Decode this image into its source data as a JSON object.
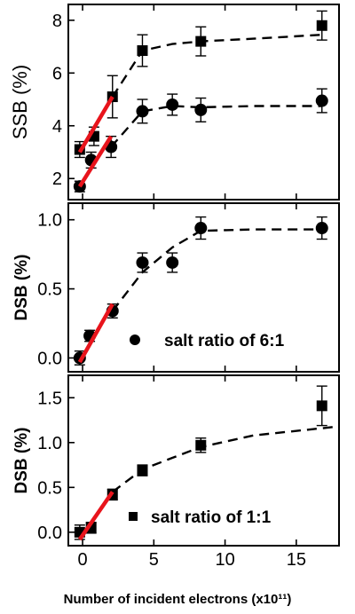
{
  "chart_data": [
    {
      "type": "scatter",
      "ylabel": "SSB (%)",
      "xlabel": "",
      "xlim": [
        -1,
        18
      ],
      "ylim": [
        1.2,
        8.6
      ],
      "yticks": [
        2,
        4,
        6,
        8
      ],
      "series": [
        {
          "marker": "square",
          "x": [
            -0.2,
            0.8,
            2.1,
            4.2,
            8.3,
            16.8
          ],
          "y": [
            3.1,
            3.6,
            5.1,
            6.85,
            7.2,
            7.8
          ],
          "err": [
            0.3,
            0.35,
            0.8,
            0.6,
            0.55,
            0.55
          ],
          "fit_dashed": [
            [
              2.1,
              5.1
            ],
            [
              4.2,
              6.85
            ],
            [
              6.3,
              7.1
            ],
            [
              8.3,
              7.2
            ],
            [
              12.0,
              7.3
            ],
            [
              16.8,
              7.45
            ]
          ],
          "fit_linear": [
            [
              -0.2,
              3.0
            ],
            [
              2.1,
              5.1
            ]
          ]
        },
        {
          "marker": "circle",
          "x": [
            -0.2,
            0.6,
            2.0,
            4.2,
            6.3,
            8.3,
            16.8
          ],
          "y": [
            1.7,
            2.7,
            3.2,
            4.55,
            4.8,
            4.6,
            4.95
          ],
          "err": [
            0.2,
            0.3,
            0.4,
            0.45,
            0.4,
            0.45,
            0.45
          ],
          "fit_dashed": [
            [
              2.0,
              3.2
            ],
            [
              4.2,
              4.55
            ],
            [
              6.3,
              4.75
            ],
            [
              8.3,
              4.7
            ],
            [
              12.0,
              4.75
            ],
            [
              16.8,
              4.75
            ]
          ],
          "fit_linear": [
            [
              -0.2,
              1.7
            ],
            [
              2.0,
              3.6
            ]
          ]
        }
      ]
    },
    {
      "type": "scatter",
      "ylabel": "DSB (%)",
      "xlabel": "",
      "xlim": [
        -1,
        18
      ],
      "ylim": [
        -0.1,
        1.12
      ],
      "yticks": [
        "0.0",
        "0.5",
        "1.0"
      ],
      "legend": "salt ratio of 6:1",
      "series": [
        {
          "marker": "circle",
          "x": [
            -0.2,
            0.5,
            2.1,
            4.2,
            6.3,
            8.3,
            16.8
          ],
          "y": [
            0.0,
            0.16,
            0.34,
            0.69,
            0.69,
            0.94,
            0.94
          ],
          "err": [
            0.05,
            0.04,
            0.05,
            0.07,
            0.07,
            0.08,
            0.08
          ],
          "fit_dashed": [
            [
              2.1,
              0.34
            ],
            [
              4.2,
              0.62
            ],
            [
              6.3,
              0.8
            ],
            [
              8.3,
              0.92
            ],
            [
              12.0,
              0.93
            ],
            [
              16.8,
              0.93
            ]
          ],
          "fit_linear": [
            [
              -0.2,
              -0.03
            ],
            [
              2.1,
              0.39
            ]
          ]
        }
      ]
    },
    {
      "type": "scatter",
      "ylabel": "DSB (%)",
      "xlabel": "Number of incident electrons (x10¹¹)",
      "xlim": [
        -1,
        18
      ],
      "ylim": [
        -0.15,
        1.75
      ],
      "xticks": [
        0,
        5,
        10,
        15
      ],
      "yticks": [
        "0.0",
        "0.5",
        "1.0",
        "1.5"
      ],
      "legend": "salt ratio of 1:1",
      "series": [
        {
          "marker": "square",
          "x": [
            -0.2,
            0.6,
            2.1,
            4.2,
            8.3,
            16.8
          ],
          "y": [
            0.0,
            0.05,
            0.42,
            0.69,
            0.97,
            1.41
          ],
          "err": [
            0.08,
            0.06,
            0.06,
            0.06,
            0.08,
            0.22
          ],
          "fit_dashed": [
            [
              2.1,
              0.45
            ],
            [
              4.2,
              0.7
            ],
            [
              6.3,
              0.83
            ],
            [
              8.3,
              0.95
            ],
            [
              12.0,
              1.08
            ],
            [
              18.0,
              1.18
            ]
          ],
          "fit_linear": [
            [
              -0.2,
              -0.08
            ],
            [
              2.1,
              0.45
            ]
          ]
        }
      ]
    }
  ]
}
